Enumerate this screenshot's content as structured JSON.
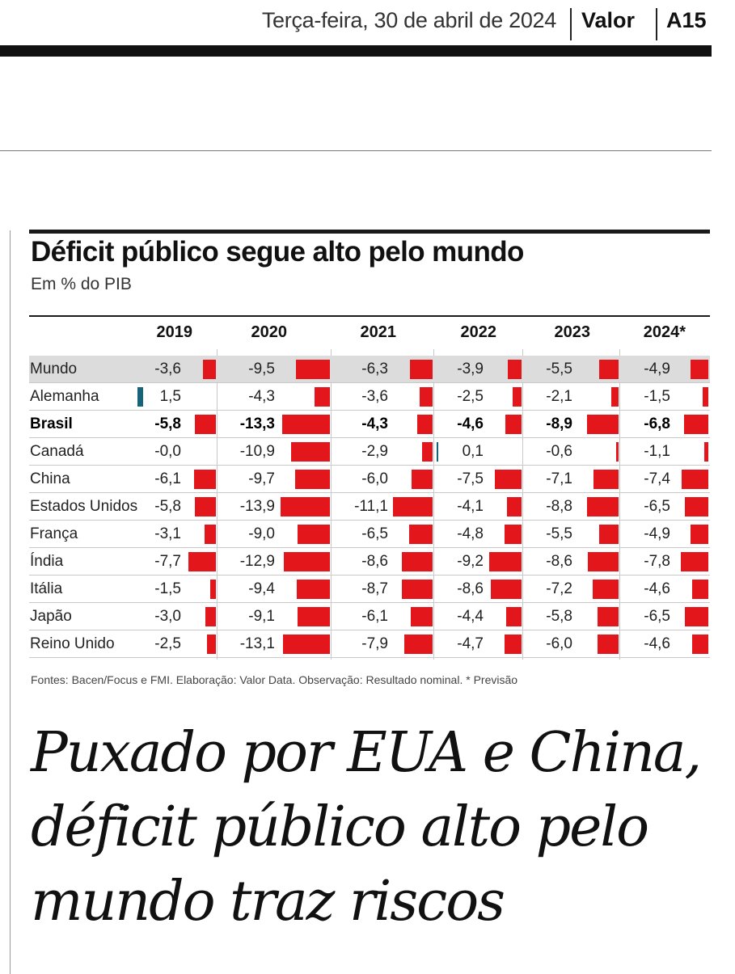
{
  "masthead": {
    "date": "Terça-feira, 30 de abril de 2024",
    "brand": "Valor",
    "page": "A15"
  },
  "chart_data": {
    "type": "table",
    "title": "Déficit público segue alto pelo mundo",
    "subtitle": "Em % do PIB",
    "years": [
      "2019",
      "2020",
      "2021",
      "2022",
      "2023",
      "2024*"
    ],
    "rows": [
      {
        "country": "Mundo",
        "highlight": true,
        "bold": false,
        "labels": [
          "-3,6",
          "-9,5",
          "-6,3",
          "-3,9",
          "-5,5",
          "-4,9"
        ],
        "values": [
          -3.6,
          -9.5,
          -6.3,
          -3.9,
          -5.5,
          -4.9
        ]
      },
      {
        "country": "Alemanha",
        "highlight": false,
        "bold": false,
        "labels": [
          "1,5",
          "-4,3",
          "-3,6",
          "-2,5",
          "-2,1",
          "-1,5"
        ],
        "values": [
          1.5,
          -4.3,
          -3.6,
          -2.5,
          -2.1,
          -1.5
        ]
      },
      {
        "country": "Brasil",
        "highlight": false,
        "bold": true,
        "labels": [
          "-5,8",
          "-13,3",
          "-4,3",
          "-4,6",
          "-8,9",
          "-6,8"
        ],
        "values": [
          -5.8,
          -13.3,
          -4.3,
          -4.6,
          -8.9,
          -6.8
        ]
      },
      {
        "country": "Canadá",
        "highlight": false,
        "bold": false,
        "labels": [
          "-0,0",
          "-10,9",
          "-2,9",
          "0,1",
          "-0,6",
          "-1,1"
        ],
        "values": [
          -0.0,
          -10.9,
          -2.9,
          0.1,
          -0.6,
          -1.1
        ]
      },
      {
        "country": "China",
        "highlight": false,
        "bold": false,
        "labels": [
          "-6,1",
          "-9,7",
          "-6,0",
          "-7,5",
          "-7,1",
          "-7,4"
        ],
        "values": [
          -6.1,
          -9.7,
          -6.0,
          -7.5,
          -7.1,
          -7.4
        ]
      },
      {
        "country": "Estados Unidos",
        "highlight": false,
        "bold": false,
        "labels": [
          "-5,8",
          "-13,9",
          "-11,1",
          "-4,1",
          "-8,8",
          "-6,5"
        ],
        "values": [
          -5.8,
          -13.9,
          -11.1,
          -4.1,
          -8.8,
          -6.5
        ]
      },
      {
        "country": "França",
        "highlight": false,
        "bold": false,
        "labels": [
          "-3,1",
          "-9,0",
          "-6,5",
          "-4,8",
          "-5,5",
          "-4,9"
        ],
        "values": [
          -3.1,
          -9.0,
          -6.5,
          -4.8,
          -5.5,
          -4.9
        ]
      },
      {
        "country": "Índia",
        "highlight": false,
        "bold": false,
        "labels": [
          "-7,7",
          "-12,9",
          "-8,6",
          "-9,2",
          "-8,6",
          "-7,8"
        ],
        "values": [
          -7.7,
          -12.9,
          -8.6,
          -9.2,
          -8.6,
          -7.8
        ]
      },
      {
        "country": "Itália",
        "highlight": false,
        "bold": false,
        "labels": [
          "-1,5",
          "-9,4",
          "-8,7",
          "-8,6",
          "-7,2",
          "-4,6"
        ],
        "values": [
          -1.5,
          -9.4,
          -8.7,
          -8.6,
          -7.2,
          -4.6
        ]
      },
      {
        "country": "Japão",
        "highlight": false,
        "bold": false,
        "labels": [
          "-3,0",
          "-9,1",
          "-6,1",
          "-4,4",
          "-5,8",
          "-6,5"
        ],
        "values": [
          -3.0,
          -9.1,
          -6.1,
          -4.4,
          -5.8,
          -6.5
        ]
      },
      {
        "country": "Reino Unido",
        "highlight": false,
        "bold": false,
        "labels": [
          "-2,5",
          "-13,1",
          "-7,9",
          "-4,7",
          "-6,0",
          "-4,6"
        ],
        "values": [
          -2.5,
          -13.1,
          -7.9,
          -4.7,
          -6.0,
          -4.6
        ]
      }
    ],
    "colors": {
      "negative": "#e3161b",
      "positive": "#17637a"
    }
  },
  "sources": "Fontes: Bacen/Focus e FMI. Elaboração: Valor Data. Observação: Resultado nominal. * Previsão",
  "headline": "Puxado por EUA e China, déficit público alto pelo mundo traz riscos"
}
